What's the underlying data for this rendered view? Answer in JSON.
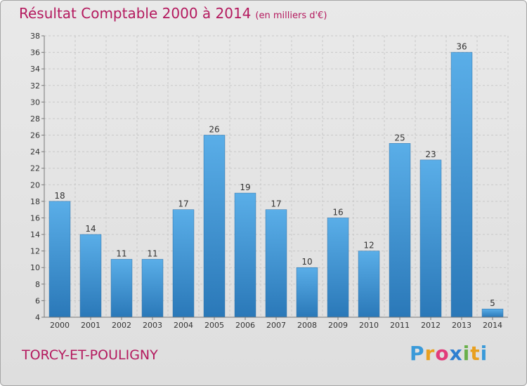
{
  "chart_data": {
    "type": "bar",
    "title": "Résultat Comptable 2000 à 2014",
    "units_note": "(en milliers d'€)",
    "categories": [
      "2000",
      "2001",
      "2002",
      "2003",
      "2004",
      "2005",
      "2006",
      "2007",
      "2008",
      "2009",
      "2010",
      "2011",
      "2012",
      "2013",
      "2014"
    ],
    "values": [
      18,
      14,
      11,
      11,
      17,
      26,
      19,
      17,
      10,
      16,
      12,
      25,
      23,
      36,
      5
    ],
    "ylim": [
      4,
      38
    ],
    "yticks": [
      4,
      6,
      8,
      10,
      12,
      14,
      16,
      18,
      20,
      22,
      24,
      26,
      28,
      30,
      32,
      34,
      36,
      38
    ],
    "grid": true,
    "xlabel": "",
    "ylabel": ""
  },
  "commune": "TORCY-ET-POULIGNY",
  "brand": {
    "letters": [
      "P",
      "r",
      "o",
      "x",
      "i",
      "t",
      "i"
    ],
    "colors": [
      "#3a9ad9",
      "#e8a020",
      "#e23b7a",
      "#2f7fd0",
      "#6ab04c",
      "#e8a020",
      "#3a9ad9"
    ]
  },
  "colors": {
    "accent": "#b4195e",
    "bar_top": "#5aaee8",
    "bar_bottom": "#2a78b8",
    "grid": "#c8c8c8"
  }
}
